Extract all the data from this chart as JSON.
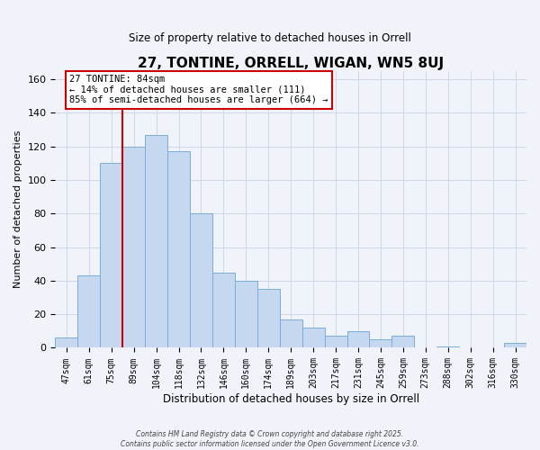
{
  "title": "27, TONTINE, ORRELL, WIGAN, WN5 8UJ",
  "subtitle": "Size of property relative to detached houses in Orrell",
  "xlabel": "Distribution of detached houses by size in Orrell",
  "ylabel": "Number of detached properties",
  "bar_labels": [
    "47sqm",
    "61sqm",
    "75sqm",
    "89sqm",
    "104sqm",
    "118sqm",
    "132sqm",
    "146sqm",
    "160sqm",
    "174sqm",
    "189sqm",
    "203sqm",
    "217sqm",
    "231sqm",
    "245sqm",
    "259sqm",
    "273sqm",
    "288sqm",
    "302sqm",
    "316sqm",
    "330sqm"
  ],
  "bar_values": [
    6,
    43,
    110,
    120,
    127,
    117,
    80,
    45,
    40,
    35,
    17,
    12,
    7,
    10,
    5,
    7,
    0,
    1,
    0,
    0,
    3
  ],
  "bar_color": "#c5d8f0",
  "bar_edge_color": "#7aaed6",
  "ylim": [
    0,
    165
  ],
  "yticks": [
    0,
    20,
    40,
    60,
    80,
    100,
    120,
    140,
    160
  ],
  "vline_color": "#cc0000",
  "annotation_line1": "27 TONTINE: 84sqm",
  "annotation_line2": "← 14% of detached houses are smaller (111)",
  "annotation_line3": "85% of semi-detached houses are larger (664) →",
  "footer_line1": "Contains HM Land Registry data © Crown copyright and database right 2025.",
  "footer_line2": "Contains public sector information licensed under the Open Government Licence v3.0.",
  "background_color": "#f0f4fa",
  "grid_color": "#d0d8e8",
  "vline_index": 2.5
}
